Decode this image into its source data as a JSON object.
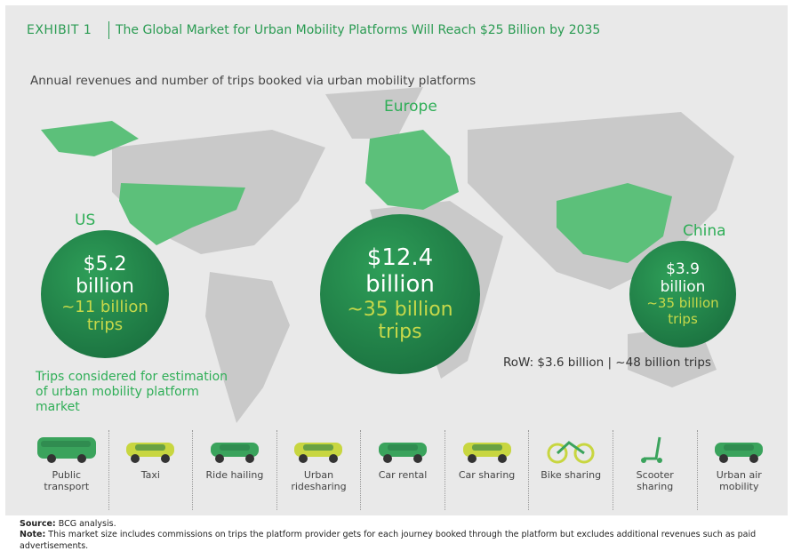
{
  "header": {
    "exhibit": "EXHIBIT 1",
    "title": "The Global Market for Urban Mobility Platforms Will Reach $25 Billion by 2035"
  },
  "subtitle": "Annual revenues and number of trips booked via urban mobility platforms",
  "regions": [
    {
      "name": "US",
      "revenue": "$5.2",
      "unit": "billion",
      "trips": "~11 billion",
      "trips_unit": "trips"
    },
    {
      "name": "Europe",
      "revenue": "$12.4",
      "unit": "billion",
      "trips": "~35 billion",
      "trips_unit": "trips"
    },
    {
      "name": "China",
      "revenue": "$3.9",
      "unit": "billion",
      "trips": "~35 billion",
      "trips_unit": "trips"
    }
  ],
  "row_note": "RoW: $3.6 billion | ~48 billion trips",
  "trips_heading": "Trips considered for estimation of urban mobility platform market",
  "modes": [
    "Public transport",
    "Taxi",
    "Ride hailing",
    "Urban ridesharing",
    "Car rental",
    "Car sharing",
    "Bike sharing",
    "Scooter sharing",
    "Urban air mobility"
  ],
  "source": {
    "label": "Source:",
    "text": "BCG analysis."
  },
  "note": {
    "label": "Note:",
    "text": "This market size includes commissions on trips the platform provider gets for each journey booked through the platform but excludes additional revenues such as paid advertisements."
  }
}
